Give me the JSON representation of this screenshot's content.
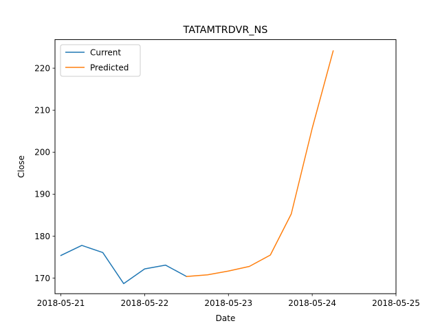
{
  "chart_data": {
    "type": "line",
    "title": "TATAMTRDVR_NS",
    "xlabel": "Date",
    "ylabel": "Close",
    "x_axis": {
      "type": "date",
      "range": [
        "2018-05-20T22:19",
        "2018-05-25T00:00"
      ],
      "ticks": [
        "2018-05-21",
        "2018-05-22",
        "2018-05-23",
        "2018-05-24",
        "2018-05-25"
      ]
    },
    "y_axis": {
      "range": [
        166.3,
        226.8
      ],
      "ticks": [
        170,
        180,
        190,
        200,
        210,
        220
      ]
    },
    "grid": false,
    "legend": {
      "placement": "upper-left"
    },
    "series": [
      {
        "name": "Current",
        "color": "#1f77b4",
        "points": [
          {
            "x": "2018-05-21T00:00",
            "y": 175.4
          },
          {
            "x": "2018-05-21T06:00",
            "y": 177.8
          },
          {
            "x": "2018-05-21T12:00",
            "y": 176.1
          },
          {
            "x": "2018-05-21T18:00",
            "y": 168.7
          },
          {
            "x": "2018-05-22T00:00",
            "y": 172.2
          },
          {
            "x": "2018-05-22T06:00",
            "y": 173.1
          },
          {
            "x": "2018-05-22T12:00",
            "y": 170.4
          }
        ]
      },
      {
        "name": "Predicted",
        "color": "#ff7f0e",
        "points": [
          {
            "x": "2018-05-22T12:00",
            "y": 170.4
          },
          {
            "x": "2018-05-22T18:00",
            "y": 170.8
          },
          {
            "x": "2018-05-23T00:00",
            "y": 171.7
          },
          {
            "x": "2018-05-23T06:00",
            "y": 172.8
          },
          {
            "x": "2018-05-23T12:00",
            "y": 175.5
          },
          {
            "x": "2018-05-23T18:00",
            "y": 185.3
          },
          {
            "x": "2018-05-24T00:00",
            "y": 205.7
          },
          {
            "x": "2018-05-24T06:00",
            "y": 224.1
          }
        ]
      }
    ]
  }
}
